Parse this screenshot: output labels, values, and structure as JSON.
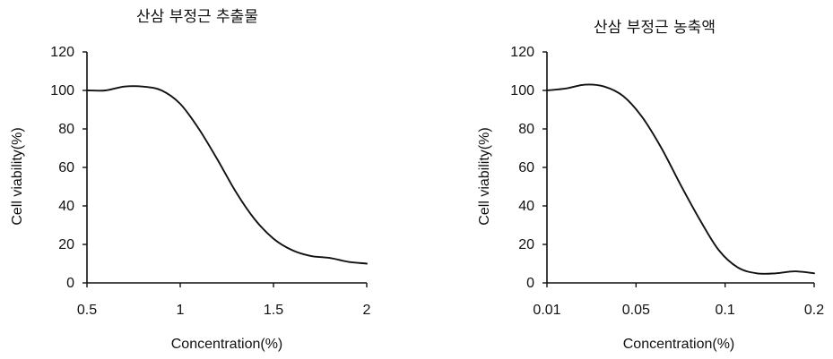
{
  "chart_data": [
    {
      "type": "line",
      "title": "산삼 부정근 추출물",
      "xlabel": "Concentration(%)",
      "ylabel": "Cell viability(%)",
      "xlim": [
        0.5,
        2
      ],
      "ylim": [
        0,
        120
      ],
      "x_ticks": [
        "0.5",
        "1",
        "1.5",
        "2"
      ],
      "y_ticks": [
        "0",
        "20",
        "40",
        "60",
        "80",
        "100",
        "120"
      ],
      "grid": false,
      "series": [
        {
          "x": [
            0.5,
            0.6,
            0.7,
            0.8,
            0.9,
            1.0,
            1.1,
            1.2,
            1.3,
            1.4,
            1.5,
            1.6,
            1.7,
            1.8,
            1.9,
            2.0
          ],
          "values": [
            100,
            100,
            102,
            102,
            100,
            93,
            80,
            64,
            47,
            33,
            23,
            17,
            14,
            13,
            11,
            10
          ]
        }
      ]
    },
    {
      "type": "line",
      "title": "산삼 부정근 농축액",
      "xlabel": "Concentration(%)",
      "ylabel": "Cell viability(%)",
      "xlim": [
        0.01,
        0.2
      ],
      "ylim": [
        0,
        120
      ],
      "x_ticks": [
        "0.01",
        "0.05",
        "0.1",
        "0.2"
      ],
      "y_ticks": [
        "0",
        "20",
        "40",
        "60",
        "80",
        "100",
        "120"
      ],
      "grid": false,
      "series": [
        {
          "x": [
            "0.01",
            "",
            "0.03",
            "",
            "0.05",
            "",
            "0.07",
            "",
            "0.09",
            "0.1",
            "",
            "",
            "",
            "",
            "0.2"
          ],
          "values": [
            100,
            101,
            103,
            102,
            97,
            86,
            70,
            51,
            33,
            17,
            8,
            5,
            5,
            6,
            5
          ]
        }
      ]
    }
  ]
}
